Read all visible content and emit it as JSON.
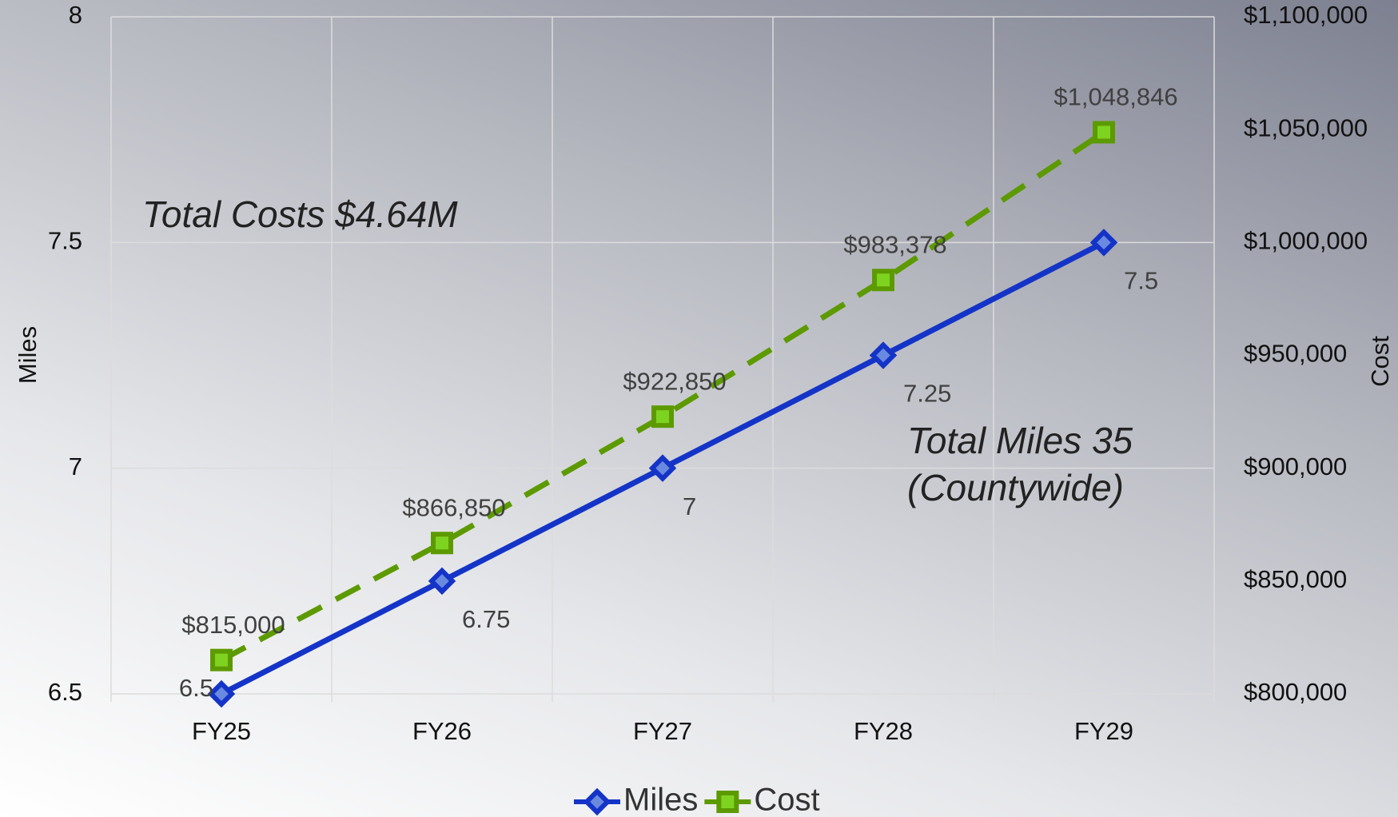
{
  "chart_data": {
    "type": "line",
    "categories": [
      "FY25",
      "FY26",
      "FY27",
      "FY28",
      "FY29"
    ],
    "series": [
      {
        "name": "Miles",
        "color": "#1434c8",
        "values": [
          6.5,
          6.75,
          7,
          7.25,
          7.5
        ]
      },
      {
        "name": "Cost",
        "color": "#5c9a00",
        "axis": "y2",
        "values": [
          815000,
          866850,
          922850,
          983378,
          1048846
        ],
        "value_labels": [
          "$815,000",
          "$866,850",
          "$922,850",
          "$983,378",
          "$1,048,846"
        ]
      }
    ],
    "y_label": "Miles",
    "y2_label": "Cost",
    "ylim": [
      6.5,
      8
    ],
    "yticks": [
      6.5,
      7,
      7.5,
      8
    ],
    "y2lim": [
      800000,
      1100000
    ],
    "y2ticks": [
      {
        "value": 800000,
        "label": "$800,000"
      },
      {
        "value": 850000,
        "label": "$850,000"
      },
      {
        "value": 900000,
        "label": "$900,000"
      },
      {
        "value": 950000,
        "label": "$950,000"
      },
      {
        "value": 1000000,
        "label": "$1,000,000"
      },
      {
        "value": 1050000,
        "label": "$1,050,000"
      },
      {
        "value": 1100000,
        "label": "$1,100,000"
      }
    ],
    "annotations": [
      "Total Costs $4.64M",
      "Total Miles 35",
      "(Countywide)"
    ],
    "grid": true,
    "legend": "bottom"
  }
}
